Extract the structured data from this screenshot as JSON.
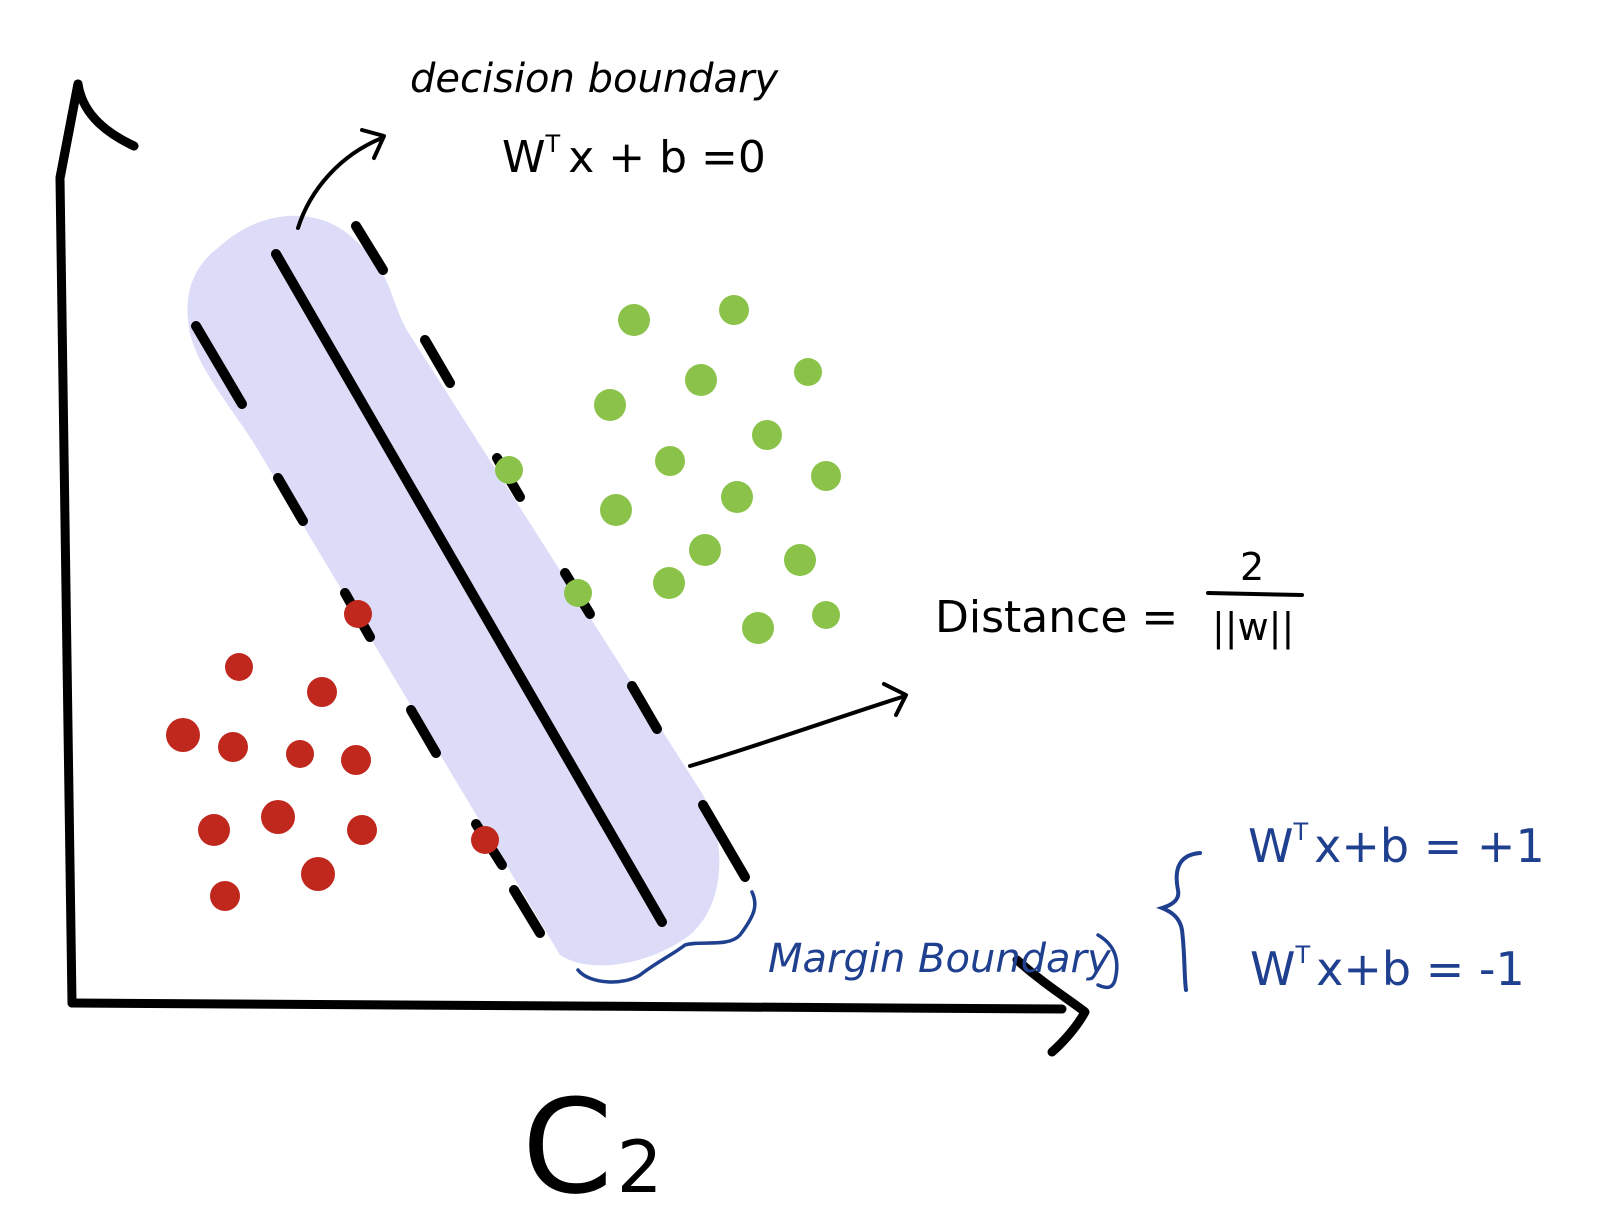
{
  "labels": {
    "decision_boundary": "decision boundary",
    "decision_eq_lhs": "W",
    "decision_eq_sup": "T",
    "decision_eq_rhs": "x + b =0",
    "distance_label": "Distance =",
    "distance_numerator": "2",
    "distance_denominator": "||w||",
    "margin_boundary": "Margin Boundary",
    "eq_plus_lhs": "W",
    "eq_plus_sup": "T",
    "eq_plus_rhs": "x+b = +1",
    "eq_minus_lhs": "W",
    "eq_minus_sup": "T",
    "eq_minus_rhs": "x+b = -1",
    "x_axis_label": "C",
    "x_axis_sub": "2"
  },
  "colors": {
    "ink": "#000000",
    "annotation_blue": "#1f3f8f",
    "margin_band": "#dcdcf8",
    "class_positive": "#8bc34a",
    "class_negative": "#c0281e"
  }
}
